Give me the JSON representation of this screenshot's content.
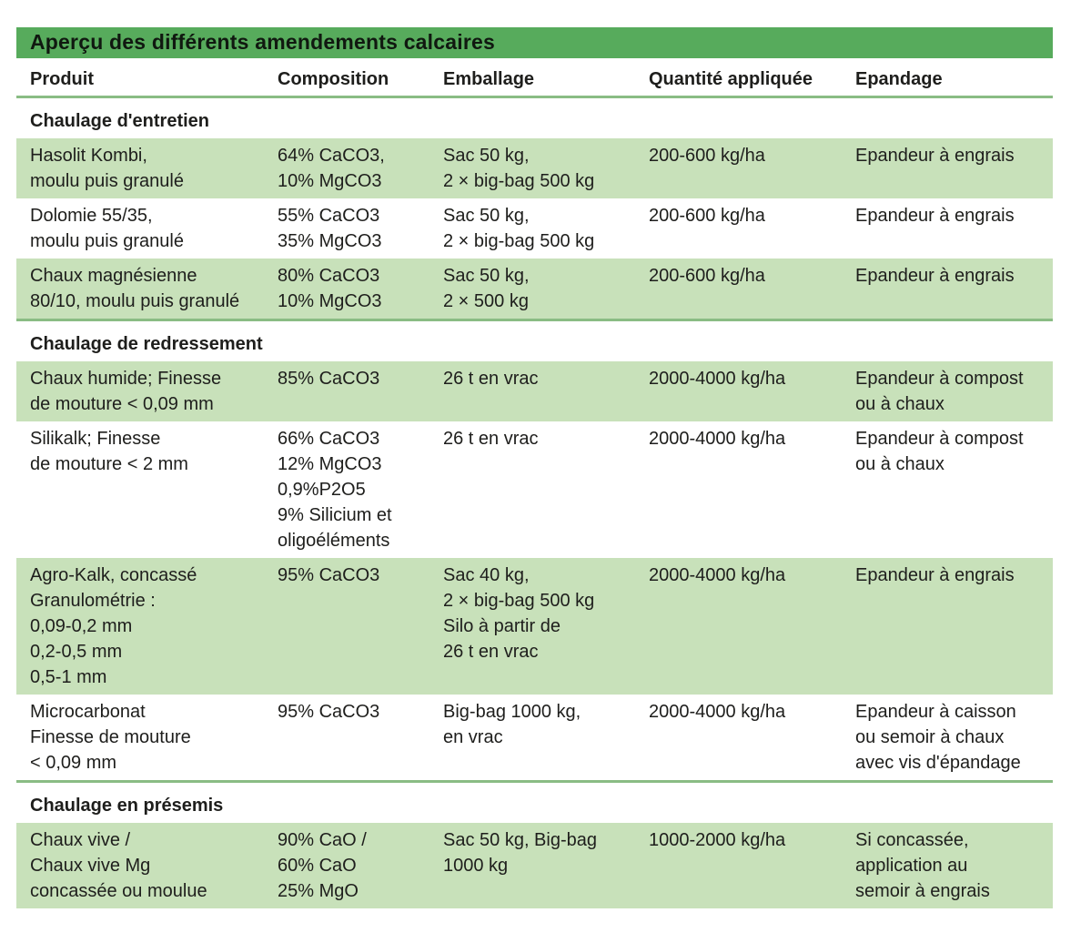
{
  "table": {
    "title": "Aperçu des différents amendements calcaires",
    "accent_color": "#57ab5c",
    "row_highlight_color": "#c8e1ba",
    "divider_color": "#8abc84",
    "columns": [
      "Produit",
      "Composition",
      "Emballage",
      "Quantité appliquée",
      "Epandage"
    ],
    "sections": [
      {
        "heading": "Chaulage d'entretien",
        "rows": [
          {
            "produit": "Hasolit Kombi,\nmoulu puis granulé",
            "composition": "64% CaCO3,\n10% MgCO3",
            "emballage": "Sac 50 kg,\n2 × big-bag 500 kg",
            "quantite": "200-600 kg/ha",
            "epandage": "Epandeur à engrais"
          },
          {
            "produit": "Dolomie 55/35,\nmoulu puis granulé",
            "composition": "55% CaCO3\n35% MgCO3",
            "emballage": "Sac 50 kg,\n2 × big-bag 500 kg",
            "quantite": "200-600 kg/ha",
            "epandage": "Epandeur à engrais"
          },
          {
            "produit": "Chaux magnésienne\n80/10, moulu puis granulé",
            "composition": "80% CaCO3\n10% MgCO3",
            "emballage": "Sac 50 kg,\n2 × 500 kg",
            "quantite": "200-600 kg/ha",
            "epandage": "Epandeur à engrais"
          }
        ]
      },
      {
        "heading": "Chaulage de redressement",
        "rows": [
          {
            "produit": "Chaux humide; Finesse\nde mouture < 0,09 mm",
            "composition": "85% CaCO3",
            "emballage": "26 t en vrac",
            "quantite": "2000-4000 kg/ha",
            "epandage": "Epandeur à compost\nou à chaux"
          },
          {
            "produit": "Silikalk; Finesse\nde mouture < 2 mm",
            "composition": "66% CaCO3\n12% MgCO3\n0,9%P2O5\n9% Silicium et\noligoéléments",
            "emballage": "26 t en vrac",
            "quantite": "2000-4000 kg/ha",
            "epandage": "Epandeur à compost\nou à chaux"
          },
          {
            "produit": "Agro-Kalk, concassé\nGranulométrie :\n0,09-0,2 mm\n0,2-0,5 mm\n0,5-1 mm",
            "composition": "95% CaCO3",
            "emballage": "Sac 40 kg,\n2 × big-bag 500 kg\nSilo à partir de\n26 t en vrac",
            "quantite": "2000-4000 kg/ha",
            "epandage": "Epandeur à engrais"
          },
          {
            "produit": "Microcarbonat\nFinesse de mouture\n< 0,09 mm",
            "composition": "95% CaCO3",
            "emballage": "Big-bag 1000 kg,\nen vrac",
            "quantite": "2000-4000 kg/ha",
            "epandage": "Epandeur à caisson\nou semoir à chaux\navec vis d'épandage"
          }
        ]
      },
      {
        "heading": "Chaulage en présemis",
        "rows": [
          {
            "produit": "Chaux vive /\nChaux vive Mg\nconcassée ou moulue",
            "composition": "90% CaO /\n60% CaO\n25% MgO",
            "emballage": "Sac 50 kg, Big-bag\n1000 kg",
            "quantite": "1000-2000 kg/ha",
            "epandage": "Si concassée,\napplication au\nsemoir à engrais"
          }
        ]
      }
    ]
  }
}
